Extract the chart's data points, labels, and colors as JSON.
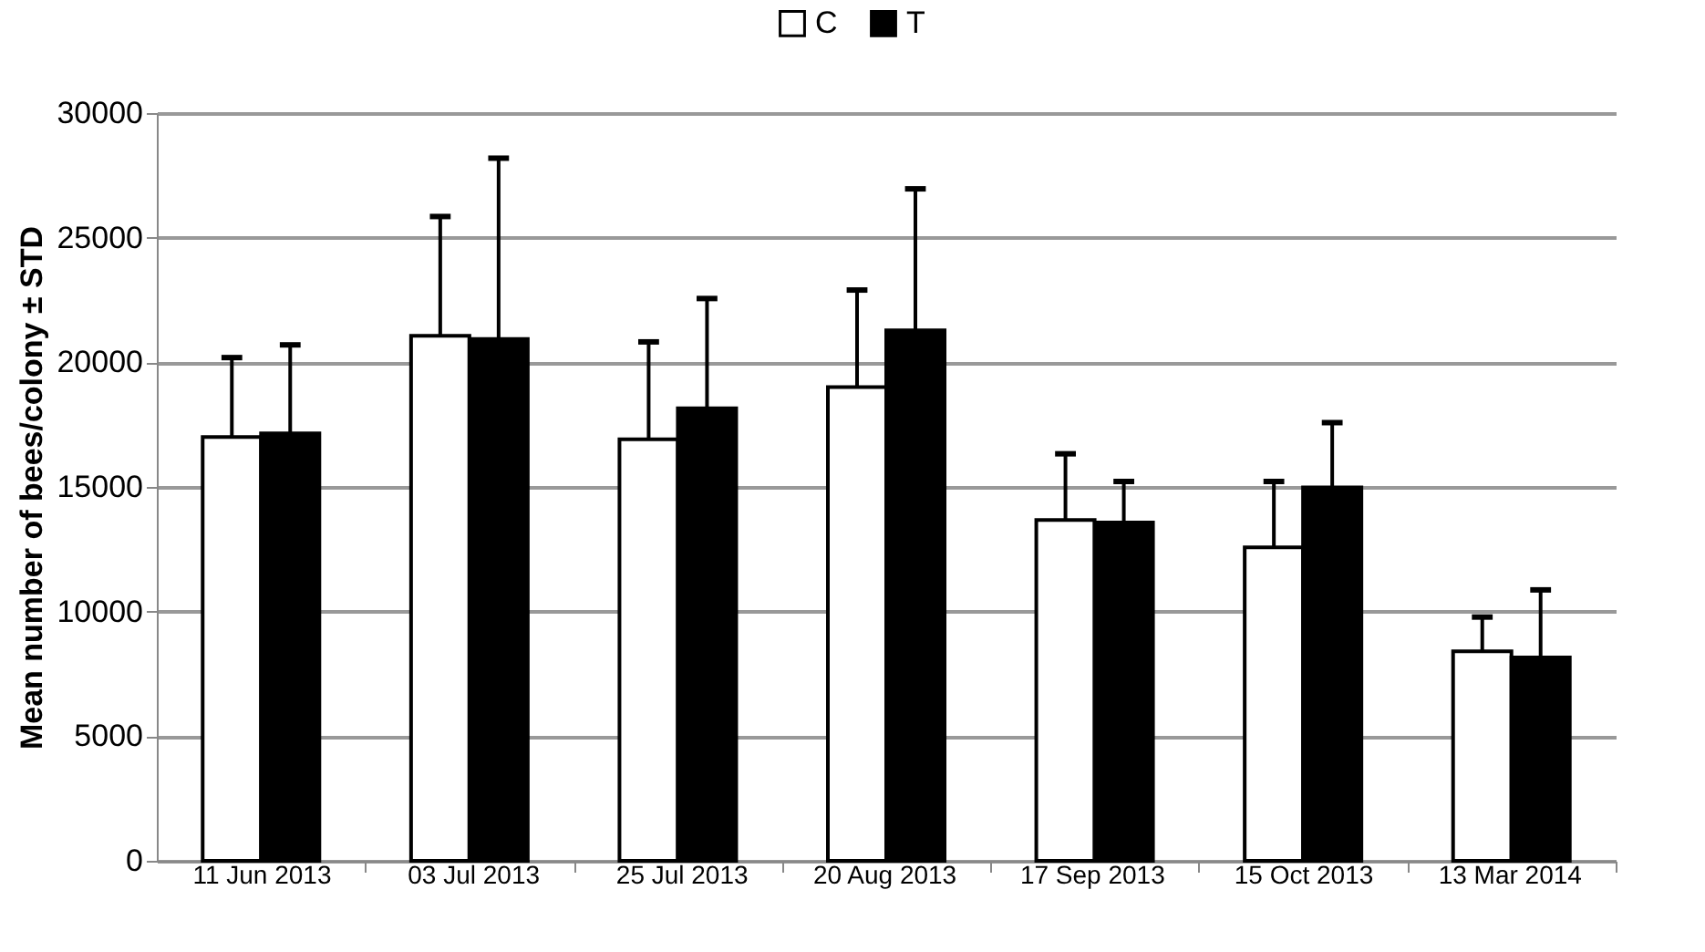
{
  "chart_data": {
    "type": "bar",
    "ylabel": "Mean number of bees/colony ± STD",
    "categories": [
      "11 Jun 2013",
      "03 Jul 2013",
      "25 Jul 2013",
      "20 Aug 2013",
      "17 Sep 2013",
      "15 Oct 2013",
      "13 Mar 2014"
    ],
    "series": [
      {
        "name": "C",
        "color": "#ffffff",
        "values": [
          17000,
          21060,
          16910,
          19010,
          13670,
          12580,
          8410
        ],
        "errors": [
          [
            17000,
            20190
          ],
          [
            21060,
            25850
          ],
          [
            16910,
            20820
          ],
          [
            19010,
            22900
          ],
          [
            13670,
            16330
          ],
          [
            12580,
            15220
          ],
          [
            8410,
            9780
          ]
        ]
      },
      {
        "name": "T",
        "color": "#000000",
        "values": [
          17150,
          20940,
          18160,
          21280,
          13570,
          14980,
          8160
        ],
        "errors": [
          [
            17150,
            20700
          ],
          [
            20940,
            28190
          ],
          [
            18160,
            22560
          ],
          [
            21280,
            26960
          ],
          [
            13570,
            15220
          ],
          [
            14980,
            17580
          ],
          [
            8160,
            10870
          ]
        ]
      }
    ],
    "ylim": [
      0,
      30000
    ],
    "yticks": [
      0,
      5000,
      10000,
      15000,
      20000,
      25000,
      30000
    ],
    "grid": "y",
    "legend": "top"
  }
}
